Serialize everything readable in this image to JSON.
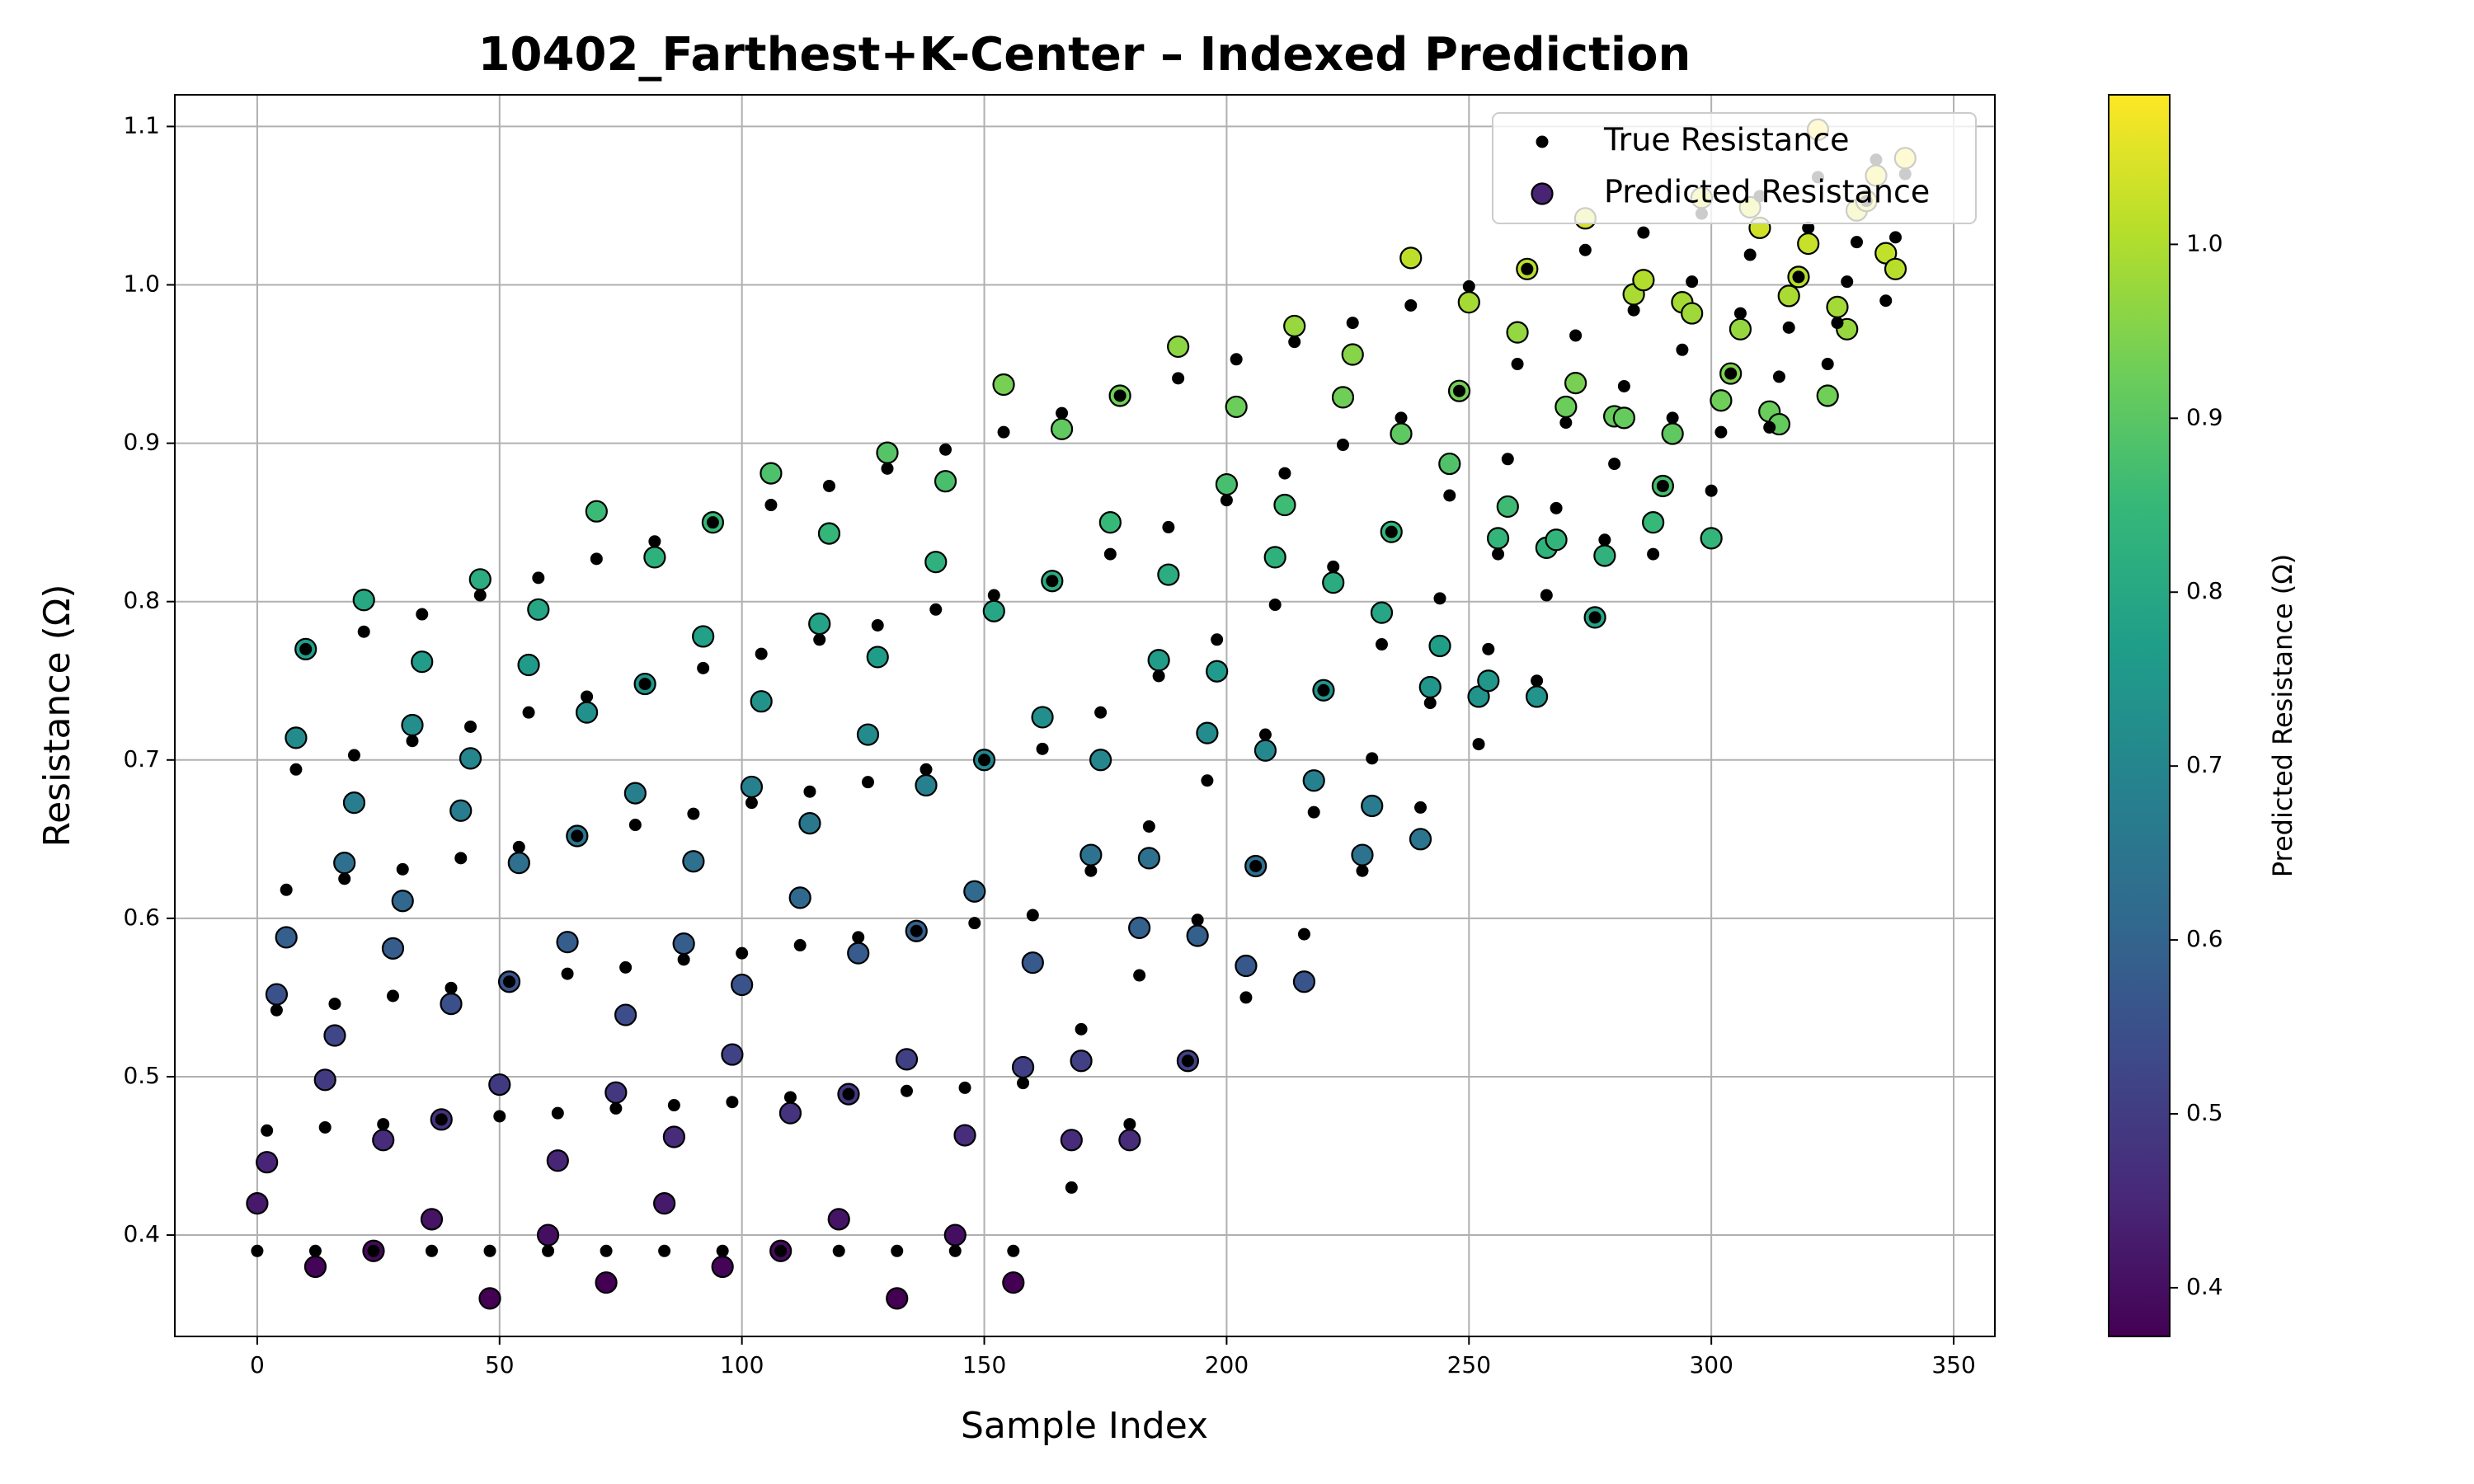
{
  "chart_data": {
    "type": "scatter",
    "title": "10402_Farthest+K-Center – Indexed Prediction",
    "x_label": "Sample Index",
    "y_label": "Resistance (Ω)",
    "x": [
      0,
      2,
      4,
      6,
      8,
      10,
      12,
      14,
      16,
      18,
      20,
      22,
      24,
      26,
      28,
      30,
      32,
      34,
      36,
      38,
      40,
      42,
      44,
      46,
      48,
      50,
      52,
      54,
      56,
      58,
      60,
      62,
      64,
      66,
      68,
      70,
      72,
      74,
      76,
      78,
      80,
      82,
      84,
      86,
      88,
      90,
      92,
      94,
      96,
      98,
      100,
      102,
      104,
      106,
      108,
      110,
      112,
      114,
      116,
      118,
      120,
      122,
      124,
      126,
      128,
      130,
      132,
      134,
      136,
      138,
      140,
      142,
      144,
      146,
      148,
      150,
      152,
      154,
      156,
      158,
      160,
      162,
      164,
      166,
      168,
      170,
      172,
      174,
      176,
      178,
      180,
      182,
      184,
      186,
      188,
      190,
      192,
      194,
      196,
      198,
      200,
      202,
      204,
      206,
      208,
      210,
      212,
      214,
      216,
      218,
      220,
      222,
      224,
      226,
      228,
      230,
      232,
      234,
      236,
      238,
      240,
      242,
      244,
      246,
      248,
      250,
      252,
      254,
      256,
      258,
      260,
      262,
      264,
      266,
      268,
      270,
      272,
      274,
      276,
      278,
      280,
      282,
      284,
      286,
      288,
      290,
      292,
      294,
      296,
      298,
      300,
      302,
      304,
      306,
      308,
      310,
      312,
      314,
      316,
      318,
      320,
      322,
      324,
      326,
      328,
      330,
      332,
      334,
      336,
      338,
      340
    ],
    "series": [
      {
        "name": "True Resistance",
        "color": "#000000",
        "values": [
          0.39,
          0.466,
          0.542,
          0.618,
          0.694,
          0.77,
          0.39,
          0.468,
          0.546,
          0.625,
          0.703,
          0.781,
          0.39,
          0.47,
          0.551,
          0.631,
          0.712,
          0.792,
          0.39,
          0.473,
          0.556,
          0.638,
          0.721,
          0.804,
          0.39,
          0.475,
          0.56,
          0.645,
          0.73,
          0.815,
          0.39,
          0.477,
          0.565,
          0.652,
          0.74,
          0.827,
          0.39,
          0.48,
          0.569,
          0.659,
          0.748,
          0.838,
          0.39,
          0.482,
          0.574,
          0.666,
          0.758,
          0.85,
          0.39,
          0.484,
          0.578,
          0.673,
          0.767,
          0.861,
          0.39,
          0.487,
          0.583,
          0.68,
          0.776,
          0.873,
          0.39,
          0.489,
          0.588,
          0.686,
          0.785,
          0.884,
          0.39,
          0.491,
          0.592,
          0.694,
          0.795,
          0.896,
          0.39,
          0.493,
          0.597,
          0.7,
          0.804,
          0.907,
          0.39,
          0.496,
          0.602,
          0.707,
          0.813,
          0.919,
          0.43,
          0.53,
          0.63,
          0.73,
          0.83,
          0.93,
          0.47,
          0.564,
          0.658,
          0.753,
          0.847,
          0.941,
          0.51,
          0.599,
          0.687,
          0.776,
          0.864,
          0.953,
          0.55,
          0.633,
          0.716,
          0.798,
          0.881,
          0.964,
          0.59,
          0.667,
          0.744,
          0.822,
          0.899,
          0.976,
          0.63,
          0.701,
          0.773,
          0.844,
          0.916,
          0.987,
          0.67,
          0.736,
          0.802,
          0.867,
          0.933,
          0.999,
          0.71,
          0.77,
          0.83,
          0.89,
          0.95,
          1.01,
          0.75,
          0.804,
          0.859,
          0.913,
          0.968,
          1.022,
          0.79,
          0.839,
          0.887,
          0.936,
          0.984,
          1.033,
          0.83,
          0.873,
          0.916,
          0.959,
          1.002,
          1.045,
          0.87,
          0.907,
          0.944,
          0.982,
          1.019,
          1.056,
          0.91,
          0.942,
          0.973,
          1.005,
          1.036,
          1.068,
          0.95,
          0.976,
          1.002,
          1.027,
          1.053,
          1.079,
          0.99,
          1.03,
          1.07
        ]
      },
      {
        "name": "Predicted Resistance",
        "colormap": "viridis",
        "values": [
          0.42,
          0.446,
          0.552,
          0.588,
          0.714,
          0.77,
          0.38,
          0.498,
          0.526,
          0.635,
          0.673,
          0.801,
          0.39,
          0.46,
          0.581,
          0.611,
          0.722,
          0.762,
          0.41,
          0.473,
          0.546,
          0.668,
          0.701,
          0.814,
          0.36,
          0.495,
          0.56,
          0.635,
          0.76,
          0.795,
          0.4,
          0.447,
          0.585,
          0.652,
          0.73,
          0.857,
          0.37,
          0.49,
          0.539,
          0.679,
          0.748,
          0.828,
          0.42,
          0.462,
          0.584,
          0.636,
          0.778,
          0.85,
          0.38,
          0.514,
          0.558,
          0.683,
          0.737,
          0.881,
          0.39,
          0.477,
          0.613,
          0.66,
          0.786,
          0.843,
          0.41,
          0.489,
          0.578,
          0.716,
          0.765,
          0.894,
          0.36,
          0.511,
          0.592,
          0.684,
          0.825,
          0.876,
          0.4,
          0.463,
          0.617,
          0.7,
          0.794,
          0.937,
          0.37,
          0.506,
          0.572,
          0.727,
          0.813,
          0.909,
          0.46,
          0.51,
          0.64,
          0.7,
          0.85,
          0.93,
          0.46,
          0.594,
          0.638,
          0.763,
          0.817,
          0.961,
          0.51,
          0.589,
          0.717,
          0.756,
          0.874,
          0.923,
          0.57,
          0.633,
          0.706,
          0.828,
          0.861,
          0.974,
          0.56,
          0.687,
          0.744,
          0.812,
          0.929,
          0.956,
          0.64,
          0.671,
          0.793,
          0.844,
          0.906,
          1.017,
          0.65,
          0.746,
          0.772,
          0.887,
          0.933,
          0.989,
          0.74,
          0.75,
          0.84,
          0.86,
          0.97,
          1.01,
          0.74,
          0.834,
          0.839,
          0.923,
          0.938,
          1.042,
          0.79,
          0.829,
          0.917,
          0.916,
          0.994,
          1.003,
          0.85,
          0.873,
          0.906,
          0.989,
          0.982,
          1.055,
          0.84,
          0.927,
          0.944,
          0.972,
          1.049,
          1.036,
          0.92,
          0.912,
          0.993,
          1.005,
          1.026,
          1.098,
          0.93,
          0.986,
          0.972,
          1.047,
          1.053,
          1.069,
          1.02,
          1.01,
          1.08
        ]
      }
    ],
    "xlim": [
      -17,
      358.5
    ],
    "ylim": [
      0.336,
      1.12
    ],
    "xticks": [
      0,
      50,
      100,
      150,
      200,
      250,
      300,
      350
    ],
    "yticks": [
      0.4,
      0.5,
      0.6,
      0.7,
      0.8,
      0.9,
      {
        "value": 1,
        "label": "1.0"
      },
      1.1
    ],
    "grid": true,
    "legend": "upper right",
    "colorbar": {
      "label": "Predicted Resistance (Ω)",
      "lim": [
        0.372,
        1.086
      ],
      "ticks": [
        0.4,
        0.5,
        0.6,
        0.7,
        0.8,
        0.9,
        {
          "value": 1,
          "label": "1.0"
        }
      ]
    }
  }
}
